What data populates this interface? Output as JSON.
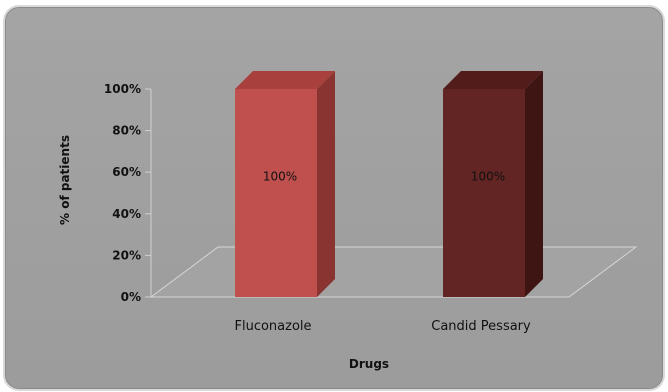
{
  "chart_data": {
    "type": "bar",
    "categories": [
      "Fluconazole",
      "Candid Pessary"
    ],
    "values": [
      100,
      100
    ],
    "data_labels": [
      "100%",
      "100%"
    ],
    "ylabel": "% of patients",
    "xlabel": "Drugs",
    "ylim": [
      0,
      100
    ],
    "yticks": [
      "0%",
      "20%",
      "40%",
      "60%",
      "80%",
      "100%"
    ],
    "legend": "none",
    "grid": false,
    "style": "3d-column",
    "colors": {
      "bar_front": [
        "#c0504d",
        "#632523"
      ],
      "bar_side": [
        "#8a3431",
        "#3e1513"
      ],
      "bar_top": [
        "#a8403d",
        "#521c1a"
      ],
      "background": "#a0a0a0"
    }
  }
}
